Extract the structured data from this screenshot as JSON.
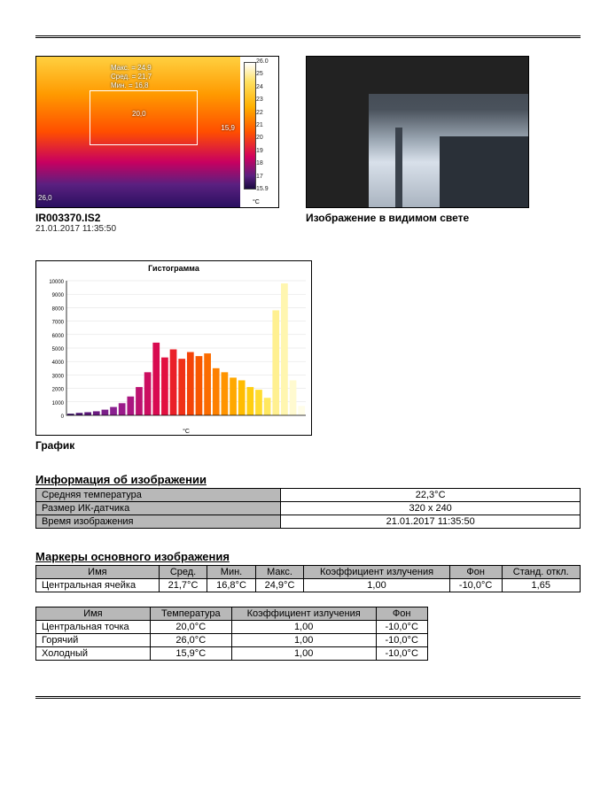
{
  "thermal": {
    "filename": "IR003370.IS2",
    "timestamp": "21.01.2017 11:35:50",
    "overlay": {
      "max": "Макс. = 24,9",
      "avg": "Сред. = 21,7",
      "min": "Мин. = 16,8",
      "center": "20,0",
      "cold": "15,9",
      "hot": "26,0"
    },
    "colorbar": {
      "unit": "°C",
      "ticks": [
        "26.0",
        "25",
        "24",
        "23",
        "22",
        "21",
        "20",
        "19",
        "18",
        "17",
        "15.9"
      ]
    }
  },
  "visible": {
    "caption": "Изображение в видимом свете"
  },
  "histogram": {
    "title": "Гистограмма",
    "ylabel_max": 10000,
    "ytick_step": 1000,
    "yticks": [
      "10000",
      "9000",
      "8000",
      "7000",
      "6000",
      "5000",
      "4000",
      "3000",
      "2000",
      "1000",
      "0"
    ],
    "xunit": "°C",
    "bars": [
      {
        "v": 120,
        "c": "#3a1060"
      },
      {
        "v": 180,
        "c": "#4a1270"
      },
      {
        "v": 230,
        "c": "#5a1678"
      },
      {
        "v": 300,
        "c": "#6a1a80"
      },
      {
        "v": 420,
        "c": "#7a1e88"
      },
      {
        "v": 620,
        "c": "#8a2090"
      },
      {
        "v": 900,
        "c": "#9a1a8a"
      },
      {
        "v": 1400,
        "c": "#aa1680"
      },
      {
        "v": 2100,
        "c": "#bc1270"
      },
      {
        "v": 3200,
        "c": "#cc0e60"
      },
      {
        "v": 5400,
        "c": "#d80a50"
      },
      {
        "v": 4300,
        "c": "#e21040"
      },
      {
        "v": 4900,
        "c": "#ea2028"
      },
      {
        "v": 4200,
        "c": "#f03018"
      },
      {
        "v": 4700,
        "c": "#f44408"
      },
      {
        "v": 4400,
        "c": "#f85800"
      },
      {
        "v": 4600,
        "c": "#fb6c00"
      },
      {
        "v": 3500,
        "c": "#fd8000"
      },
      {
        "v": 3200,
        "c": "#ff9400"
      },
      {
        "v": 2800,
        "c": "#ffa800"
      },
      {
        "v": 2600,
        "c": "#ffbc00"
      },
      {
        "v": 2100,
        "c": "#ffce10"
      },
      {
        "v": 1900,
        "c": "#ffdc30"
      },
      {
        "v": 1300,
        "c": "#ffe860"
      },
      {
        "v": 7800,
        "c": "#fff090"
      },
      {
        "v": 9800,
        "c": "#fff6b0"
      },
      {
        "v": 2600,
        "c": "#fffad0"
      },
      {
        "v": 700,
        "c": "#fffde8"
      }
    ]
  },
  "chart_caption": "График",
  "info": {
    "title": "Информация об изображении",
    "rows": [
      {
        "label": "Средняя температура",
        "value": "22,3°C"
      },
      {
        "label": "Размер ИК-датчика",
        "value": "320 x 240"
      },
      {
        "label": "Время изображения",
        "value": "21.01.2017 11:35:50"
      }
    ]
  },
  "markers": {
    "title": "Маркеры основного изображения",
    "columns": [
      "Имя",
      "Сред.",
      "Мин.",
      "Макс.",
      "Коэффициент излучения",
      "Фон",
      "Станд. откл."
    ],
    "rows": [
      [
        "Центральная ячейка",
        "21,7°C",
        "16,8°C",
        "24,9°C",
        "1,00",
        "-10,0°C",
        "1,65"
      ]
    ]
  },
  "points": {
    "columns": [
      "Имя",
      "Температура",
      "Коэффициент излучения",
      "Фон"
    ],
    "rows": [
      [
        "Центральная точка",
        "20,0°C",
        "1,00",
        "-10,0°C"
      ],
      [
        "Горячий",
        "26,0°C",
        "1,00",
        "-10,0°C"
      ],
      [
        "Холодный",
        "15,9°C",
        "1,00",
        "-10,0°C"
      ]
    ]
  }
}
